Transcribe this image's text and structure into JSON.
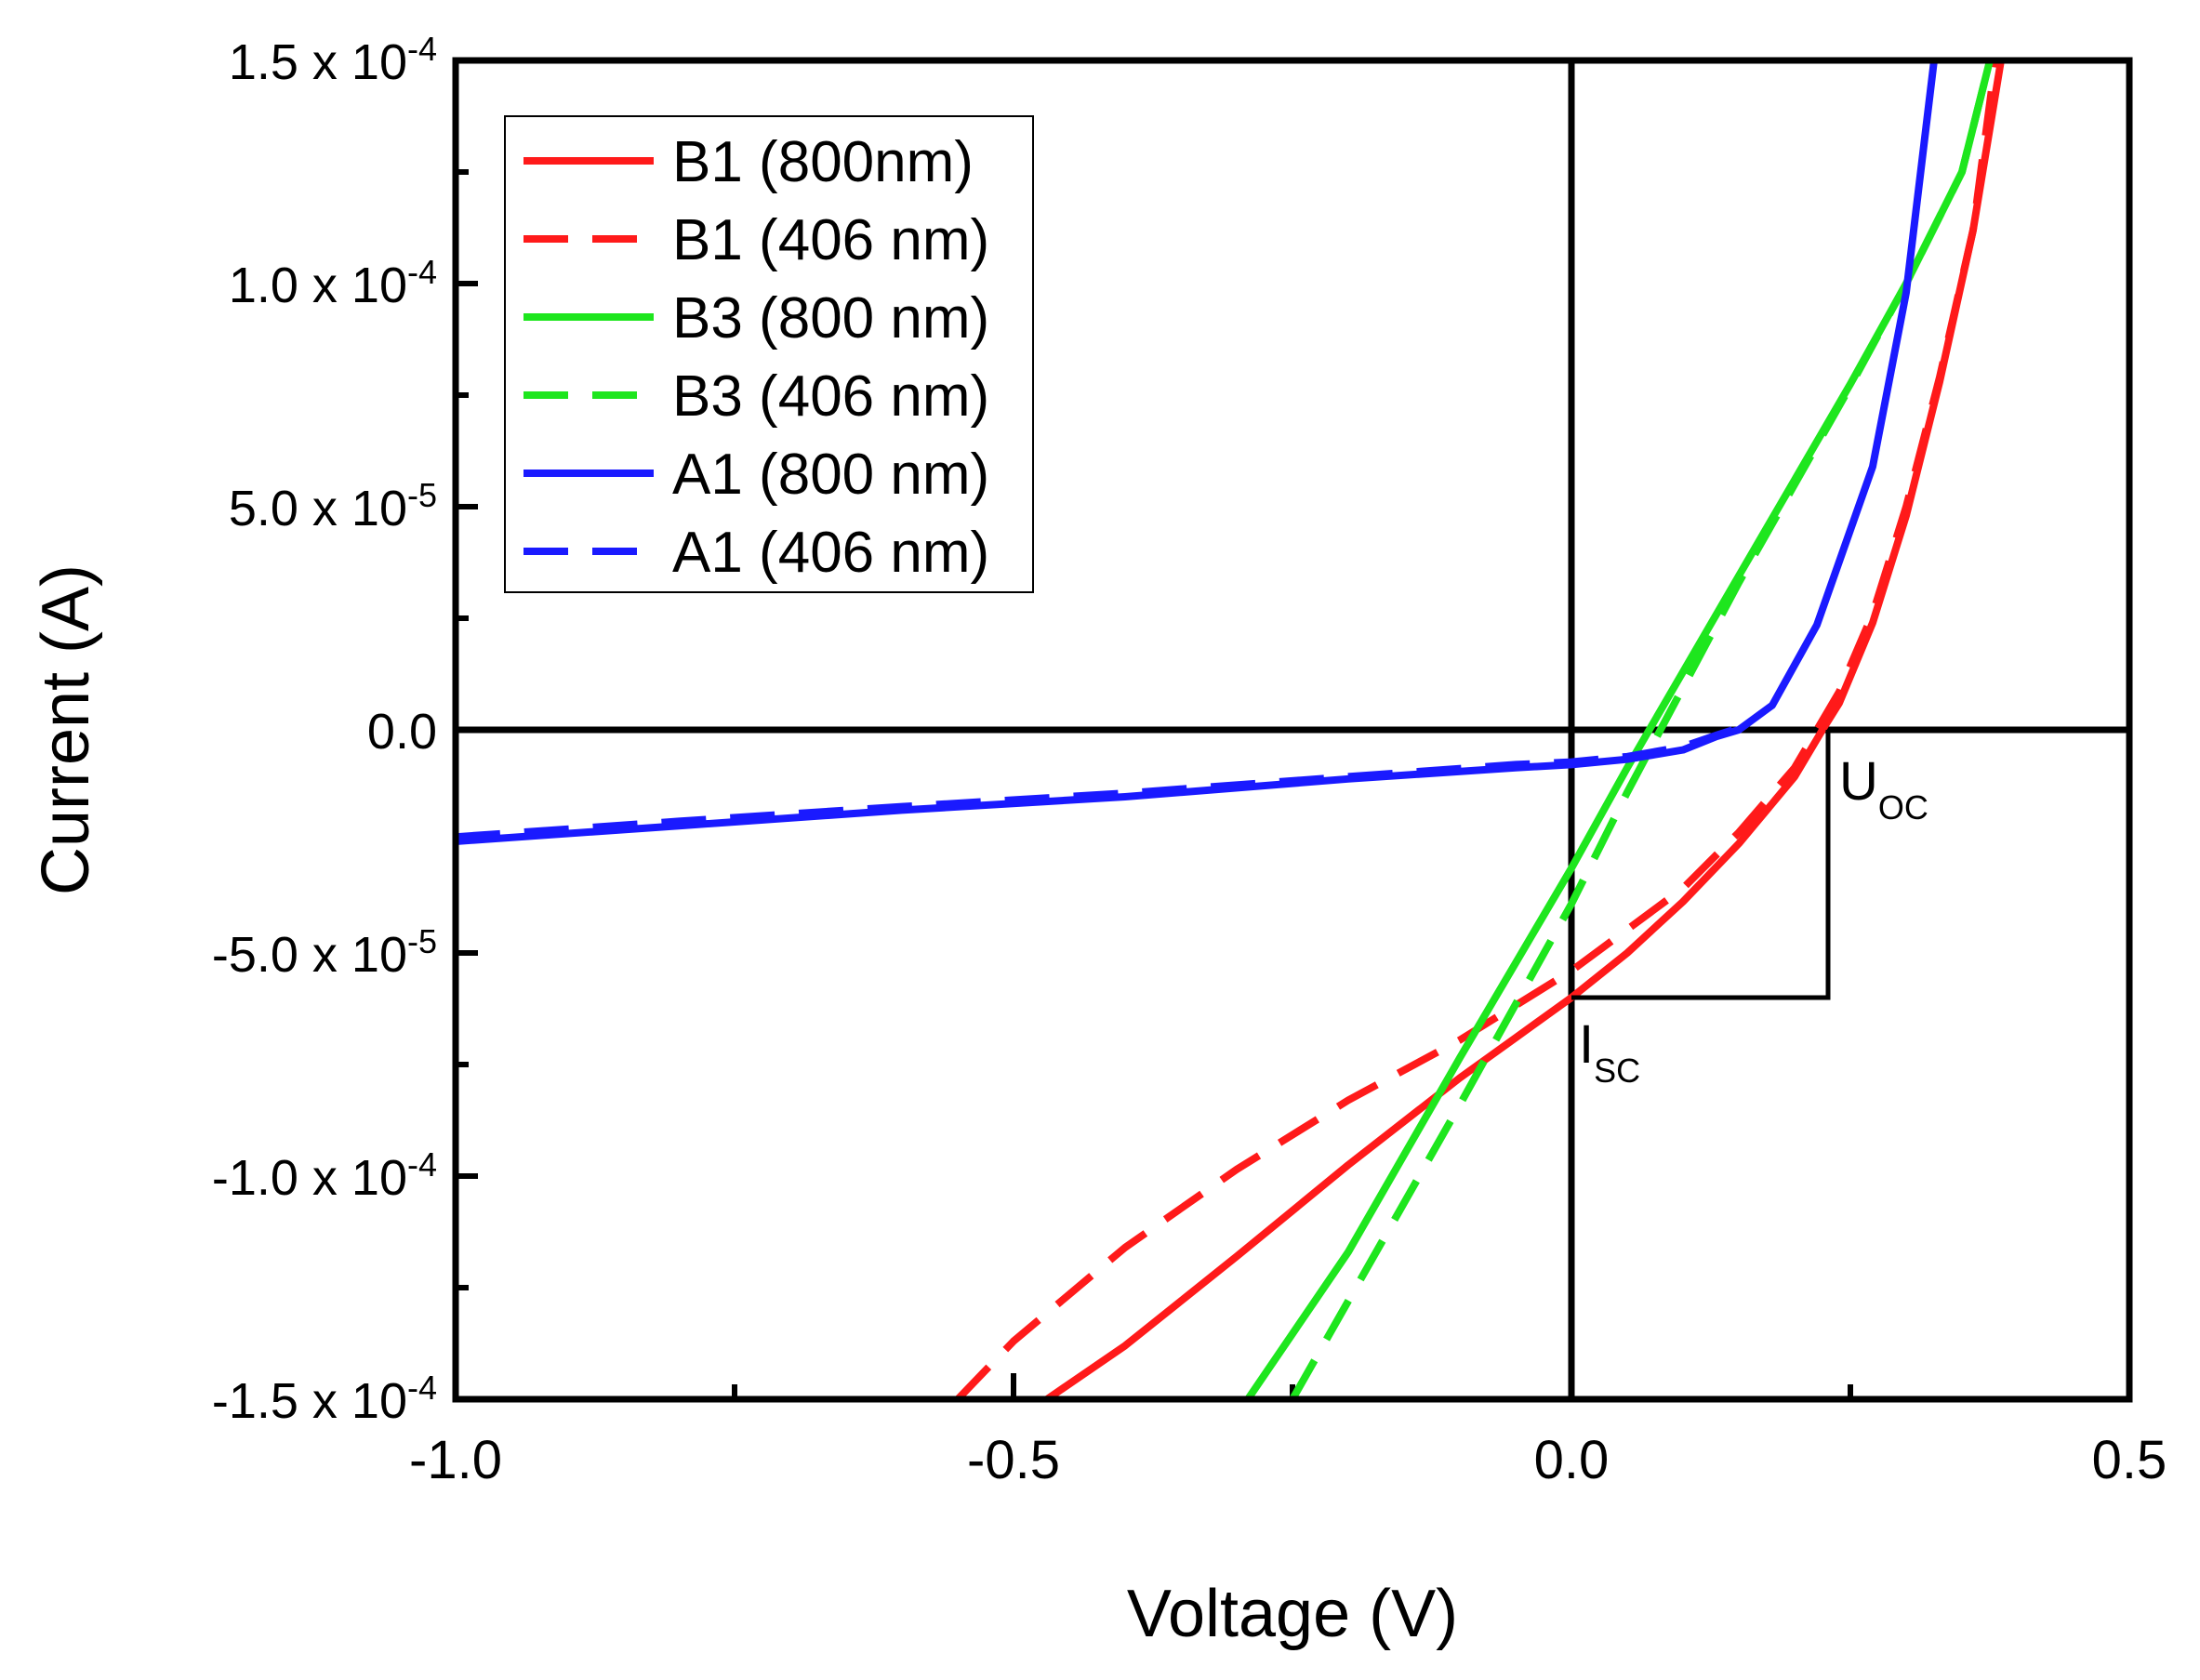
{
  "chart_data": {
    "type": "line",
    "xlabel": "Voltage (V)",
    "ylabel": "Current (A)",
    "xlim": [
      -1.0,
      0.5
    ],
    "ylim": [
      -0.00015,
      0.00015
    ],
    "x_ticks": [
      {
        "value": -1.0,
        "label": "-1.0"
      },
      {
        "value": -0.5,
        "label": "-0.5"
      },
      {
        "value": 0.0,
        "label": "0.0"
      },
      {
        "value": 0.5,
        "label": "0.5"
      }
    ],
    "x_minor_ticks": [
      -0.75,
      -0.25,
      0.25
    ],
    "y_ticks": [
      {
        "value": 0.00015,
        "mantissa": "1.5 x 10",
        "exp": "-4"
      },
      {
        "value": 0.0001,
        "mantissa": "1.0 x 10",
        "exp": "-4"
      },
      {
        "value": 5e-05,
        "mantissa": "5.0 x 10",
        "exp": "-5"
      },
      {
        "value": 0.0,
        "mantissa": "0.0",
        "exp": ""
      },
      {
        "value": -5e-05,
        "mantissa": "-5.0 x 10",
        "exp": "-5"
      },
      {
        "value": -0.0001,
        "mantissa": "-1.0 x 10",
        "exp": "-4"
      },
      {
        "value": -0.00015,
        "mantissa": "-1.5 x 10",
        "exp": "-4"
      }
    ],
    "y_minor_ticks": [
      0.000125,
      7.5e-05,
      2.5e-05,
      -2.5e-05,
      -7.5e-05,
      -0.000125
    ],
    "grid": false,
    "legend_position": "top-left",
    "colors": {
      "red": "#ff1a1a",
      "green": "#1ee61e",
      "blue": "#1a1aff",
      "axis": "#000000"
    },
    "series": [
      {
        "name": "B1 (800nm)",
        "color": "#ff1a1a",
        "dash": "solid",
        "x": [
          -0.47,
          -0.4,
          -0.3,
          -0.2,
          -0.1,
          -0.05,
          0.0,
          0.05,
          0.1,
          0.15,
          0.2,
          0.225,
          0.24,
          0.27,
          0.3,
          0.33,
          0.36,
          0.385
        ],
        "y": [
          -0.00015,
          -0.000138,
          -0.000118,
          -9.75e-05,
          -7.8e-05,
          -6.9e-05,
          -6e-05,
          -5e-05,
          -3.85e-05,
          -2.55e-05,
          -1.05e-05,
          0.0,
          6e-06,
          2.4e-05,
          4.8e-05,
          7.8e-05,
          0.000112,
          0.00015
        ]
      },
      {
        "name": "B1 (406 nm)",
        "color": "#ff1a1a",
        "dash": "dashed",
        "x": [
          -0.55,
          -0.5,
          -0.4,
          -0.3,
          -0.2,
          -0.1,
          0.0,
          0.1,
          0.15,
          0.2,
          0.22,
          0.24,
          0.27,
          0.3,
          0.33,
          0.36,
          0.38
        ],
        "y": [
          -0.00015,
          -0.000137,
          -0.000116,
          -9.85e-05,
          -8.3e-05,
          -6.95e-05,
          -5.4e-05,
          -3.55e-05,
          -2.3e-05,
          -8.5e-06,
          0.0,
          8.5e-06,
          2.6e-05,
          5e-05,
          7.9e-05,
          0.000112,
          0.00015
        ]
      },
      {
        "name": "B3 (800 nm)",
        "color": "#1ee61e",
        "dash": "solid",
        "x": [
          -0.29,
          -0.2,
          -0.1,
          0.0,
          0.05,
          0.1,
          0.15,
          0.2,
          0.25,
          0.3,
          0.35,
          0.375
        ],
        "y": [
          -0.00015,
          -0.000117,
          -7.35e-05,
          -3.1e-05,
          -8.5e-06,
          1.3e-05,
          3.45e-05,
          5.6e-05,
          7.75e-05,
          0.0001,
          0.000125,
          0.00015
        ]
      },
      {
        "name": "B3 (406 nm)",
        "color": "#1ee61e",
        "dash": "dashed",
        "x": [
          -0.25,
          -0.2,
          -0.1,
          0.0,
          0.05,
          0.1,
          0.15,
          0.2,
          0.25,
          0.3,
          0.35,
          0.375
        ],
        "y": [
          -0.00015,
          -0.000128,
          -8.4e-05,
          -3.9e-05,
          -1.4e-05,
          9.5e-06,
          3.3e-05,
          5.5e-05,
          7.7e-05,
          0.0001,
          0.000125,
          0.00015
        ]
      },
      {
        "name": "A1 (800 nm)",
        "color": "#1a1aff",
        "dash": "solid",
        "x": [
          -1.0,
          -0.8,
          -0.6,
          -0.4,
          -0.2,
          -0.05,
          0.0,
          0.05,
          0.1,
          0.13,
          0.15,
          0.18,
          0.22,
          0.27,
          0.3,
          0.325
        ],
        "y": [
          -2.5e-05,
          -2.15e-05,
          -1.8e-05,
          -1.5e-05,
          -1.1e-05,
          -8.5e-06,
          -7.8e-06,
          -6.6e-06,
          -4.5e-06,
          -1.5e-06,
          0.0,
          5.5e-06,
          2.35e-05,
          5.9e-05,
          9.8e-05,
          0.00015
        ]
      },
      {
        "name": "A1 (406 nm)",
        "color": "#1a1aff",
        "dash": "dashed",
        "x": [
          -1.0,
          -0.8,
          -0.6,
          -0.4,
          -0.2,
          -0.05,
          0.0,
          0.05,
          0.1,
          0.13,
          0.145
        ],
        "y": [
          -2.4e-05,
          -2.05e-05,
          -1.72e-05,
          -1.42e-05,
          -1.05e-05,
          -7.8e-06,
          -7.2e-06,
          -6e-06,
          -3.8e-06,
          -1.2e-06,
          0.0
        ]
      }
    ],
    "annotations": {
      "isc": {
        "main": "I",
        "sub": "SC",
        "x": 0.0,
        "y": -6e-05
      },
      "uoc": {
        "main": "U",
        "sub": "OC",
        "x": 0.23,
        "y": 0.0
      }
    }
  }
}
